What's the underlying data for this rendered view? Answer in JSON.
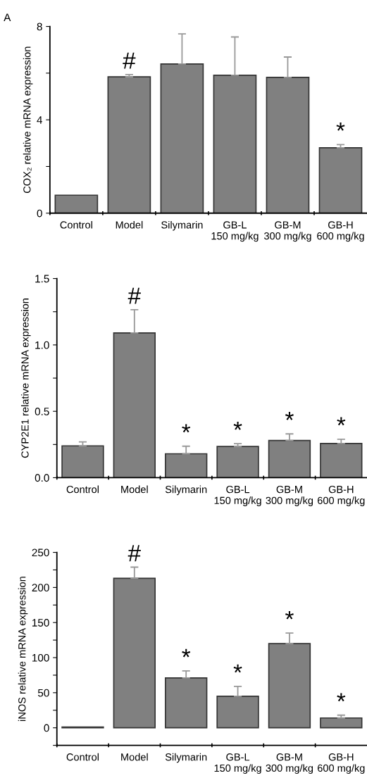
{
  "chart_data": [
    {
      "type": "bar",
      "ylabel": "COX₂ relative mRNA expression",
      "categories": [
        "Control",
        "Model",
        "Silymarin",
        "GB-L\n150 mg/kg",
        "GB-M\n300 mg/kg",
        "GB-H\n600 mg/kg"
      ],
      "values": [
        0.77,
        5.84,
        6.39,
        5.91,
        5.82,
        2.8
      ],
      "errors": [
        null,
        [
          5.84,
          5.94
        ],
        [
          6.39,
          7.68
        ],
        [
          5.91,
          7.55
        ],
        [
          5.82,
          6.69
        ],
        [
          2.8,
          2.94
        ]
      ],
      "color": "#808080",
      "ylim": [
        0,
        8
      ],
      "yticks": [
        0,
        {
          "value": 2,
          "label": null
        },
        4,
        {
          "value": 6,
          "label": null
        },
        8
      ],
      "grid": false,
      "annotations": [
        "A",
        {
          "text": "#",
          "x": "Model",
          "y": 5.94
        },
        {
          "text": "*",
          "x": "GB-H\n600 mg/kg",
          "y": 2.94
        }
      ]
    },
    {
      "type": "bar",
      "ylabel": "CYP2E1 relative mRNA expression",
      "categories": [
        "Control",
        "Model",
        "Silymarin",
        "GB-L\n150 mg/kg",
        "GB-M\n300 mg/kg",
        "GB-H\n600 mg/kg"
      ],
      "values": [
        0.24,
        1.09,
        0.18,
        0.235,
        0.28,
        0.258
      ],
      "errors": [
        [
          0.24,
          0.27
        ],
        [
          1.09,
          1.265
        ],
        [
          0.18,
          0.237
        ],
        [
          0.235,
          0.256
        ],
        [
          0.28,
          0.33
        ],
        [
          0.258,
          0.29
        ]
      ],
      "color": "#808080",
      "ylim": [
        0,
        1.5
      ],
      "yticks": [
        "0.0",
        {
          "value": 0.25,
          "label": null
        },
        0.5,
        {
          "value": 0.75,
          "label": null
        },
        "1.0",
        {
          "value": 1.25,
          "label": null
        },
        1.5
      ],
      "grid": false,
      "annotations": [
        {
          "text": "#",
          "x": "Model",
          "y": 1.265
        },
        {
          "text": "*",
          "x": "Silymarin",
          "y": 0.237
        },
        {
          "text": "*",
          "x": "GB-L\n150 mg/kg",
          "y": 0.256
        },
        {
          "text": "*",
          "x": "GB-M\n300 mg/kg",
          "y": 0.33
        },
        {
          "text": "*",
          "x": "GB-H\n600 mg/kg",
          "y": 0.29
        }
      ]
    },
    {
      "type": "bar",
      "ylabel": "iNOS relative mRNA expression",
      "categories": [
        "Control",
        "Model",
        "Silymarin",
        "GB-L\n150 mg/kg",
        "GB-M\n300 mg/kg",
        "GB-H\n600 mg/kg"
      ],
      "values": [
        1,
        213,
        71,
        45,
        120,
        14
      ],
      "errors": [
        null,
        [
          213,
          229
        ],
        [
          71,
          81
        ],
        [
          45,
          59
        ],
        [
          120,
          135
        ],
        [
          14,
          18
        ]
      ],
      "color": "#808080",
      "ylim": [
        -25,
        250
      ],
      "yticks": [
        {
          "value": -25,
          "label": null
        },
        0,
        {
          "value": 25,
          "label": null
        },
        50,
        {
          "value": 75,
          "label": null
        },
        100,
        {
          "value": 125,
          "label": null
        },
        150,
        {
          "value": 175,
          "label": null
        },
        200,
        {
          "value": 225,
          "label": null
        },
        250
      ],
      "grid": false,
      "annotations": [
        {
          "text": "#",
          "x": "Model",
          "y": 229
        },
        {
          "text": "*",
          "x": "Silymarin",
          "y": 81
        },
        {
          "text": "*",
          "x": "GB-L\n150 mg/kg",
          "y": 59
        },
        {
          "text": "*",
          "x": "GB-M\n300 mg/kg",
          "y": 135
        },
        {
          "text": "*",
          "x": "GB-H\n600 mg/kg",
          "y": 18
        }
      ]
    }
  ]
}
